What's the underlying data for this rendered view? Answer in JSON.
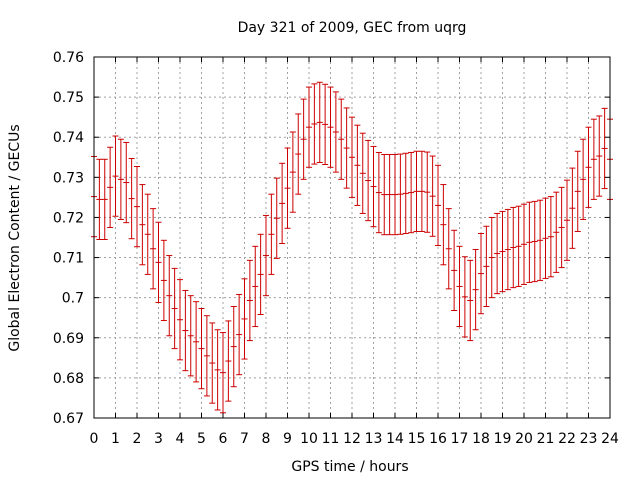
{
  "chart_data": {
    "type": "scatter",
    "title": "Day 321 of 2009, GEC from uqrg",
    "xlabel": "GPS time / hours",
    "ylabel": "Global Electron Content / GECUs",
    "xlim": [
      0,
      24
    ],
    "ylim": [
      0.67,
      0.76
    ],
    "xticks": [
      "0",
      "1",
      "2",
      "3",
      "4",
      "5",
      "6",
      "7",
      "8",
      "9",
      "10",
      "11",
      "12",
      "13",
      "14",
      "15",
      "16",
      "17",
      "18",
      "19",
      "20",
      "21",
      "22",
      "23",
      "24"
    ],
    "yticks": [
      "0.67",
      "0.68",
      "0.69",
      "0.7",
      "0.71",
      "0.72",
      "0.73",
      "0.74",
      "0.75",
      "0.76"
    ],
    "grid": true,
    "marker_color": "#cc0000",
    "series": [
      {
        "error_bar_halfwidth": 0.01,
        "x": [
          0,
          0.25,
          0.5,
          0.75,
          1,
          1.25,
          1.5,
          1.75,
          2,
          2.25,
          2.5,
          2.75,
          3,
          3.25,
          3.5,
          3.75,
          4,
          4.25,
          4.5,
          4.75,
          5,
          5.25,
          5.5,
          5.75,
          6,
          6.25,
          6.5,
          6.75,
          7,
          7.25,
          7.5,
          7.75,
          8,
          8.25,
          8.5,
          8.75,
          9,
          9.25,
          9.5,
          9.75,
          10,
          10.25,
          10.5,
          10.75,
          11,
          11.25,
          11.5,
          11.75,
          12,
          12.25,
          12.5,
          12.75,
          13,
          13.25,
          13.5,
          13.75,
          14,
          14.25,
          14.5,
          14.75,
          15,
          15.25,
          15.5,
          15.75,
          16,
          16.25,
          16.5,
          16.75,
          17,
          17.25,
          17.5,
          17.75,
          18,
          18.25,
          18.5,
          18.75,
          19,
          19.25,
          19.5,
          19.75,
          20,
          20.25,
          20.5,
          20.75,
          21,
          21.25,
          21.5,
          21.75,
          22,
          22.25,
          22.5,
          22.75,
          23,
          23.25,
          23.5,
          23.75,
          24
        ],
        "y": [
          0.7252,
          0.7245,
          0.7245,
          0.7275,
          0.7303,
          0.7295,
          0.7287,
          0.7247,
          0.7227,
          0.7182,
          0.7158,
          0.7122,
          0.7088,
          0.7043,
          0.7005,
          0.6973,
          0.6945,
          0.6918,
          0.6905,
          0.689,
          0.6873,
          0.6855,
          0.6837,
          0.682,
          0.6813,
          0.6842,
          0.6878,
          0.6908,
          0.6947,
          0.6993,
          0.7028,
          0.7058,
          0.7105,
          0.7158,
          0.7198,
          0.7235,
          0.7273,
          0.7313,
          0.7358,
          0.7395,
          0.7425,
          0.7433,
          0.7437,
          0.7432,
          0.7425,
          0.7413,
          0.7395,
          0.7373,
          0.735,
          0.733,
          0.731,
          0.7292,
          0.7277,
          0.7262,
          0.7257,
          0.7257,
          0.7257,
          0.7258,
          0.726,
          0.7262,
          0.7265,
          0.7265,
          0.7263,
          0.7253,
          0.723,
          0.7182,
          0.7122,
          0.7068,
          0.7028,
          0.7002,
          0.6993,
          0.702,
          0.706,
          0.7078,
          0.71,
          0.711,
          0.7115,
          0.712,
          0.7125,
          0.7128,
          0.7133,
          0.7138,
          0.714,
          0.7143,
          0.7148,
          0.7152,
          0.7163,
          0.7175,
          0.7193,
          0.7223,
          0.7265,
          0.7295,
          0.7325,
          0.7345,
          0.7353,
          0.7372,
          0.7345
        ]
      }
    ]
  }
}
